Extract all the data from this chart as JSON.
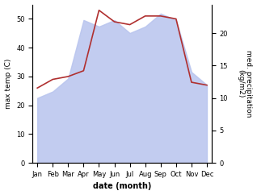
{
  "months": [
    "Jan",
    "Feb",
    "Mar",
    "Apr",
    "May",
    "Jun",
    "Jul",
    "Aug",
    "Sep",
    "Oct",
    "Nov",
    "Dec"
  ],
  "temp": [
    26,
    29,
    30,
    32,
    53,
    49,
    48,
    51,
    51,
    50,
    28,
    27
  ],
  "precip": [
    10,
    11,
    13,
    22,
    21,
    22,
    20,
    21,
    23,
    22,
    14,
    12
  ],
  "temp_color": "#b03030",
  "precip_fill_color": "#b8c4ee",
  "ylabel_left": "max temp (C)",
  "ylabel_right": "med. precipitation\n(kg/m2)",
  "xlabel": "date (month)",
  "ylim_left": [
    0,
    55
  ],
  "ylim_right": [
    0,
    24.4
  ],
  "yticks_left": [
    0,
    10,
    20,
    30,
    40,
    50
  ],
  "yticks_right": [
    0,
    5,
    10,
    15,
    20
  ],
  "background_color": "#ffffff"
}
